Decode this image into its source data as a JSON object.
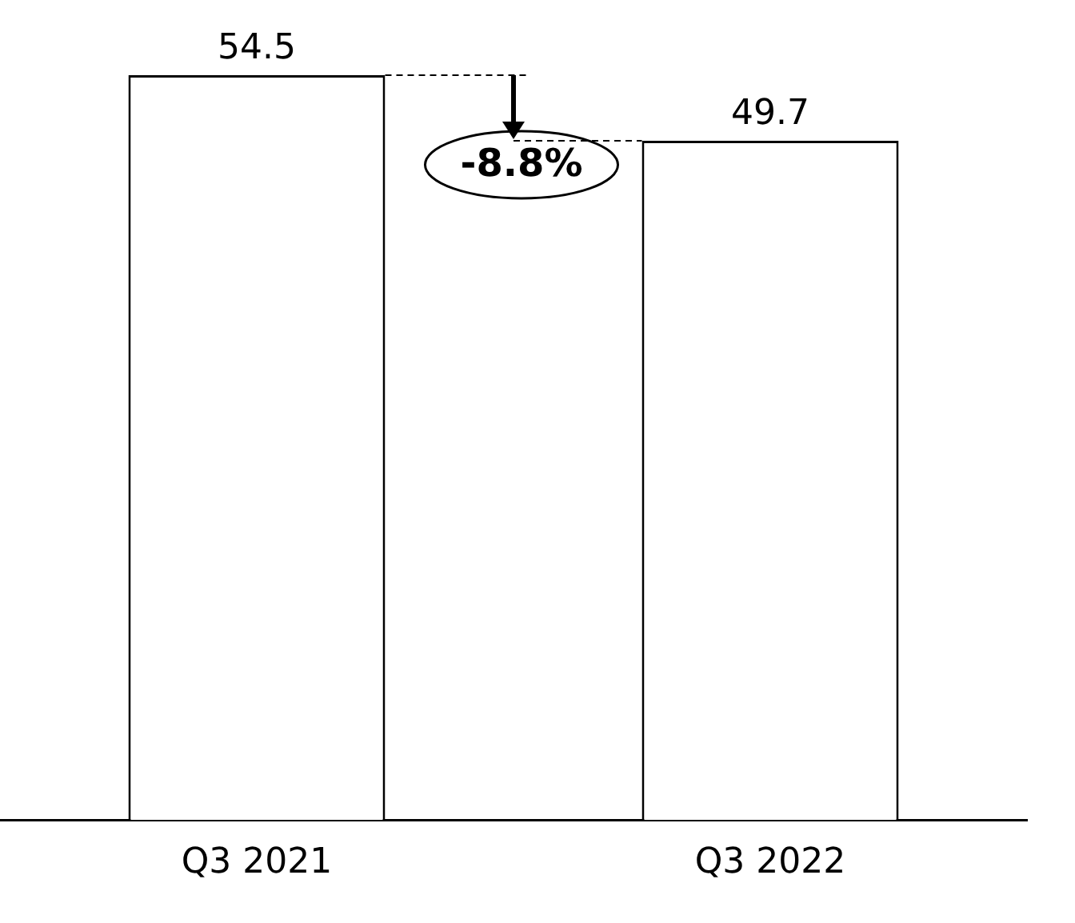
{
  "chart_data": {
    "type": "bar",
    "categories": [
      "Q3 2021",
      "Q3 2022"
    ],
    "values": [
      54.5,
      49.7
    ],
    "color": "#ffffff",
    "data_labels": true,
    "grid": false,
    "legend": false,
    "tick_labels": "x",
    "annotations": [
      "-8.8%"
    ]
  }
}
